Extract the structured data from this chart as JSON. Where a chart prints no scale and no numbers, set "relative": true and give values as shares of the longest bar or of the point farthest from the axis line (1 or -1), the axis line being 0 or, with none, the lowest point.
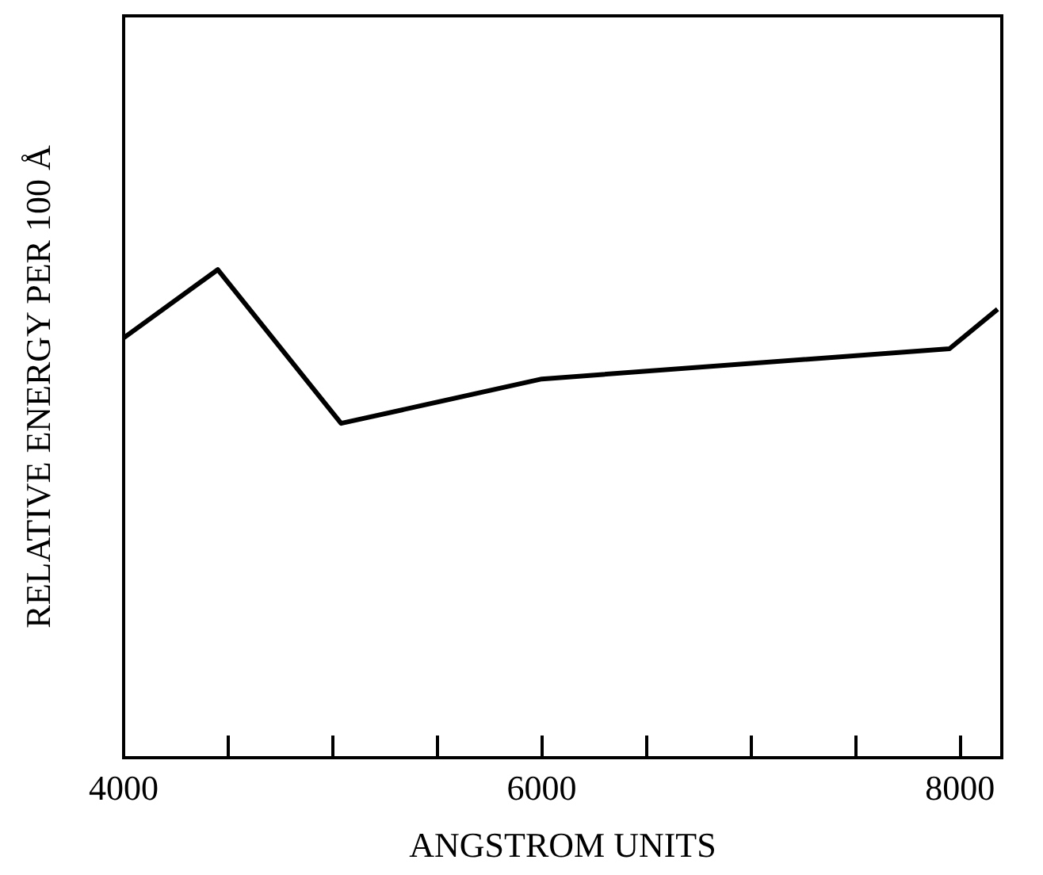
{
  "chart_data": {
    "type": "line",
    "relative": true,
    "xlabel": "ANGSTROM UNITS",
    "ylabel": "RELATIVE ENERGY PER 100 Å",
    "x": [
      4000,
      4450,
      5040,
      6000,
      7950,
      8180
    ],
    "series": [
      {
        "color": "#000000",
        "values": [
          0.86,
          1,
          0.685,
          0.776,
          0.838,
          0.919
        ]
      }
    ],
    "xlim": [
      4000,
      8200
    ],
    "xticks": [
      4000,
      {
        "value": 4500,
        "label": null
      },
      {
        "value": 5000,
        "label": null
      },
      {
        "value": 5500,
        "label": null
      },
      6000,
      {
        "value": 6500,
        "label": null
      },
      {
        "value": 7000,
        "label": null
      },
      {
        "value": 7500,
        "label": null
      },
      8000
    ],
    "grid": false,
    "marker": "none",
    "line_style": "solid"
  }
}
